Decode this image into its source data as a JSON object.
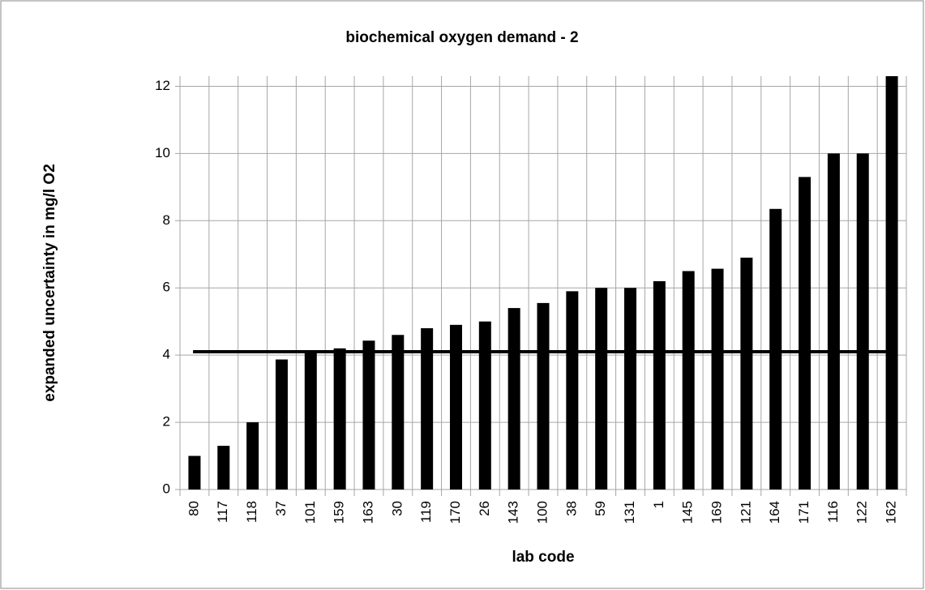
{
  "chart_data": {
    "type": "bar",
    "title": "biochemical oxygen demand - 2",
    "x_label": "lab code",
    "y_label": "expanded uncertainty in mg/l O2",
    "categories": [
      "80",
      "117",
      "118",
      "37",
      "101",
      "159",
      "163",
      "30",
      "119",
      "170",
      "26",
      "143",
      "100",
      "38",
      "59",
      "131",
      "1",
      "145",
      "169",
      "121",
      "164",
      "171",
      "116",
      "122",
      "162"
    ],
    "values": [
      1.0,
      1.3,
      2.0,
      3.87,
      4.1,
      4.2,
      4.43,
      4.6,
      4.8,
      4.9,
      5.0,
      5.4,
      5.55,
      5.9,
      6.0,
      6.0,
      6.2,
      6.5,
      6.57,
      6.9,
      8.35,
      9.3,
      10.0,
      10.0,
      12.3
    ],
    "color": "#000000",
    "reference_line": 4.1,
    "ylim": [
      0,
      12.3
    ],
    "yticks": [
      0,
      2,
      4,
      6,
      8,
      10,
      12
    ],
    "grid": true
  }
}
